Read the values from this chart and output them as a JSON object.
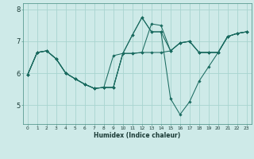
{
  "xlabel": "Humidex (Indice chaleur)",
  "background_color": "#ceeae8",
  "grid_color": "#a8d4d0",
  "line_color": "#1a6b60",
  "x_ticks": [
    0,
    1,
    2,
    3,
    4,
    5,
    6,
    7,
    8,
    9,
    10,
    11,
    12,
    13,
    14,
    15,
    16,
    17,
    18,
    19,
    20,
    21,
    22,
    23
  ],
  "y_ticks": [
    5,
    6,
    7,
    8
  ],
  "ylim": [
    4.4,
    8.2
  ],
  "xlim": [
    -0.5,
    23.5
  ],
  "series": [
    [
      5.95,
      6.65,
      6.7,
      6.45,
      6.0,
      5.82,
      5.65,
      5.52,
      5.55,
      5.55,
      6.62,
      6.62,
      6.65,
      6.65,
      6.65,
      6.7,
      6.95,
      7.0,
      6.65,
      6.65,
      6.65,
      7.15,
      7.25,
      7.3
    ],
    [
      5.95,
      6.65,
      6.7,
      6.45,
      6.0,
      5.82,
      5.65,
      5.52,
      5.55,
      5.55,
      6.62,
      7.2,
      7.75,
      7.3,
      7.3,
      6.7,
      6.95,
      7.0,
      6.65,
      6.65,
      6.65,
      7.15,
      7.25,
      7.3
    ],
    [
      5.95,
      6.65,
      6.7,
      6.45,
      6.0,
      5.82,
      5.65,
      5.52,
      5.55,
      5.55,
      6.62,
      7.2,
      7.75,
      7.3,
      7.3,
      5.2,
      4.7,
      5.1,
      5.75,
      6.2,
      6.65,
      7.15,
      7.25,
      7.3
    ],
    [
      5.95,
      6.65,
      6.7,
      6.45,
      6.0,
      5.82,
      5.65,
      5.52,
      5.55,
      6.55,
      6.62,
      6.62,
      6.65,
      7.55,
      7.5,
      6.7,
      6.95,
      7.0,
      6.65,
      6.65,
      6.65,
      7.15,
      7.25,
      7.3
    ]
  ]
}
